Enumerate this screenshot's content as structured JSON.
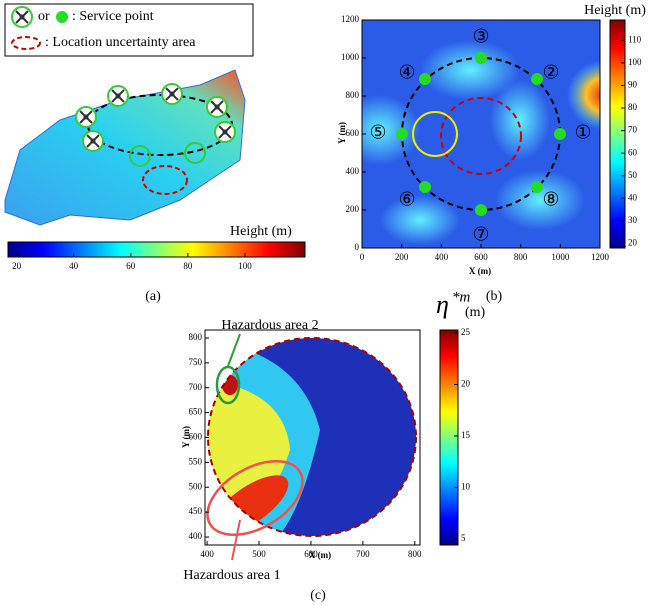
{
  "panel_a": {
    "legend": {
      "or": "or",
      "service": ": Service point",
      "uncertainty": ": Location uncertainty area"
    },
    "colorbar": {
      "label": "Height (m)",
      "lim": [
        17,
        121
      ],
      "ticks": [
        20,
        40,
        60,
        80,
        100
      ]
    },
    "caption": "(a)"
  },
  "panel_b": {
    "xlabel": "X (m)",
    "ylabel": "Y (m)",
    "xlim": [
      0,
      1200
    ],
    "ylim": [
      0,
      1200
    ],
    "xticks": [
      0,
      200,
      400,
      600,
      800,
      1000,
      1200
    ],
    "yticks": [
      0,
      200,
      400,
      600,
      800,
      1000,
      1200
    ],
    "point_labels": [
      "①",
      "②",
      "③",
      "④",
      "⑤",
      "⑥",
      "⑦",
      "⑧"
    ],
    "colorbar": {
      "label": "Height (m)",
      "lim": [
        18,
        119
      ],
      "ticks": [
        20,
        30,
        40,
        50,
        60,
        70,
        80,
        90,
        100,
        110
      ]
    },
    "caption": "(b)"
  },
  "panel_c": {
    "xlabel": "X (m)",
    "ylabel": "Y (m)",
    "xlim": [
      396,
      810
    ],
    "ylim": [
      384,
      816
    ],
    "xticks": [
      400,
      500,
      600,
      700,
      800
    ],
    "yticks": [
      400,
      450,
      500,
      550,
      600,
      650,
      700,
      750,
      800
    ],
    "annotations": [
      "Hazardous area 2",
      "Hazardous area 1"
    ],
    "colorbar": {
      "symbol": "η",
      "superscript": "*m",
      "unit": "(m)",
      "lim": [
        4.4,
        25.3
      ],
      "ticks": [
        5,
        10,
        15,
        20,
        25
      ]
    },
    "caption": "(c)"
  }
}
